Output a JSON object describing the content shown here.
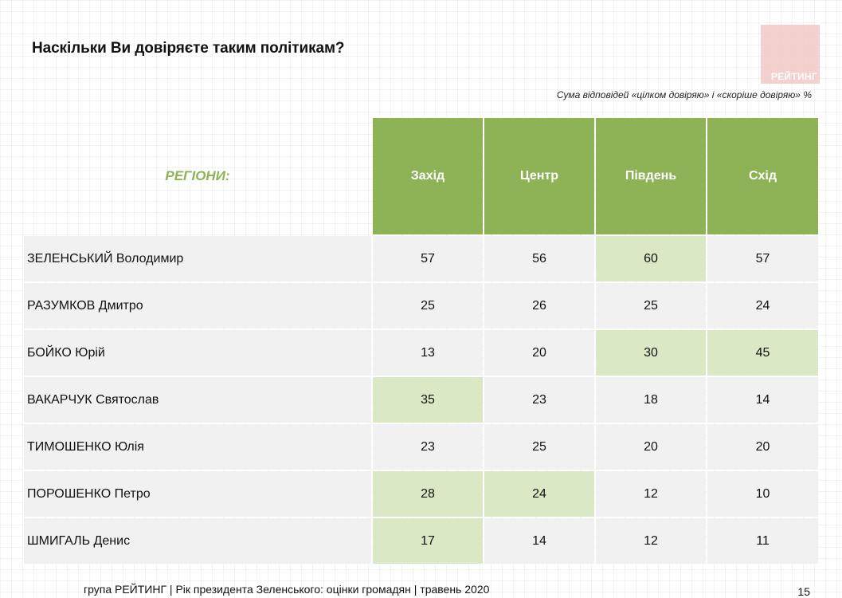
{
  "title": "Наскільки Ви довіряєте таким політикам?",
  "logo_text": "РЕЙТИНГ",
  "subtitle": "Сума відповідей «цілком довіряю» і «скоріше довіряю» %",
  "footer": "група РЕЙТИНГ |  Рік президента Зеленського: оцінки громадян | травень 2020",
  "page_number": "15",
  "colors": {
    "header_green": "#8db356",
    "highlight_green": "#dae8c5",
    "row_gray": "#f1f1f1"
  },
  "chart_data": {
    "type": "table",
    "row_header_label": "РЕГІОНИ:",
    "columns": [
      "Захід",
      "Центр",
      "Південь",
      "Схід"
    ],
    "rows": [
      {
        "name": "ЗЕЛЕНСЬКИЙ Володимир",
        "values": [
          "57",
          "56",
          "60",
          "57"
        ],
        "highlight": [
          false,
          false,
          true,
          false
        ]
      },
      {
        "name": "РАЗУМКОВ Дмитро",
        "values": [
          "25",
          "26",
          "25",
          "24"
        ],
        "highlight": [
          false,
          false,
          false,
          false
        ]
      },
      {
        "name": "БОЙКО Юрій",
        "values": [
          "13",
          "20",
          "30",
          "45"
        ],
        "highlight": [
          false,
          false,
          true,
          true
        ]
      },
      {
        "name": "ВАКАРЧУК Святослав",
        "values": [
          "35",
          "23",
          "18",
          "14"
        ],
        "highlight": [
          true,
          false,
          false,
          false
        ]
      },
      {
        "name": "ТИМОШЕНКО Юлія",
        "values": [
          "23",
          "25",
          "20",
          "20"
        ],
        "highlight": [
          false,
          false,
          false,
          false
        ]
      },
      {
        "name": "ПОРОШЕНКО Петро",
        "values": [
          "28",
          "24",
          "12",
          "10"
        ],
        "highlight": [
          true,
          true,
          false,
          false
        ]
      },
      {
        "name": "ШМИГАЛЬ Денис",
        "values": [
          "17",
          "14",
          "12",
          "11"
        ],
        "highlight": [
          true,
          false,
          false,
          false
        ]
      }
    ]
  }
}
